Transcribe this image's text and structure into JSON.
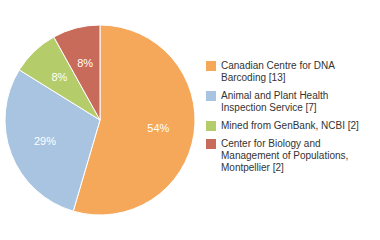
{
  "chart_data": {
    "type": "pie",
    "categories": [
      "Canadian Centre for DNA\nBarcoding [13]",
      "Animal and Plant Health\nInspection Service [7]",
      "Mined from GenBank, NCBI [2]",
      "Center for Biology and\nManagement of Populations,\nMontpellier [2]"
    ],
    "values": [
      54,
      29,
      8,
      8
    ],
    "value_labels": [
      "54%",
      "29%",
      "8%",
      "8%"
    ],
    "colors": [
      "#F5A85A",
      "#A8C4E0",
      "#B5CC6A",
      "#C96B5A"
    ],
    "data_labels": true
  }
}
